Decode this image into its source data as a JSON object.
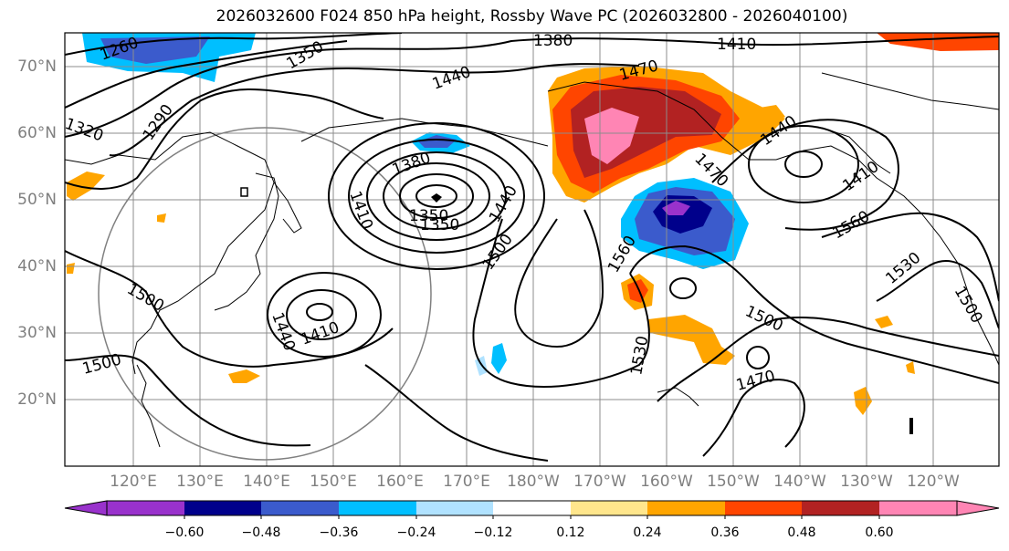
{
  "title": "2026032600 F024 850 hPa height, Rossby Wave PC (2026032800 - 2026040100)",
  "lat_labels": [
    "70°N",
    "60°N",
    "50°N",
    "40°N",
    "30°N",
    "20°N"
  ],
  "lon_labels": [
    "120°E",
    "130°E",
    "140°E",
    "150°E",
    "160°E",
    "170°E",
    "180°W",
    "170°W",
    "160°W",
    "150°W",
    "140°W",
    "130°W",
    "120°W"
  ],
  "colorbar": {
    "ticks": [
      "−0.60",
      "−0.48",
      "−0.36",
      "−0.24",
      "−0.12",
      "0.12",
      "0.24",
      "0.36",
      "0.48",
      "0.60"
    ],
    "colors": [
      "#9932cc",
      "#00008b",
      "#3b5bcc",
      "#00bfff",
      "#b0e2ff",
      "#ffffff",
      "#ffe68c",
      "#ffa500",
      "#ff4500",
      "#b22222",
      "#ff85b4",
      "#ff85b4"
    ]
  },
  "contour_labels": [
    "1260",
    "1350",
    "1380",
    "1410",
    "1290",
    "1320",
    "1440",
    "1470",
    "1380",
    "1410",
    "1350",
    "1440",
    "1410",
    "1470",
    "1440",
    "1560",
    "1500",
    "1500",
    "1560",
    "1410",
    "1440",
    "1500",
    "1530",
    "1500",
    "1470",
    "1530",
    "1500"
  ]
}
